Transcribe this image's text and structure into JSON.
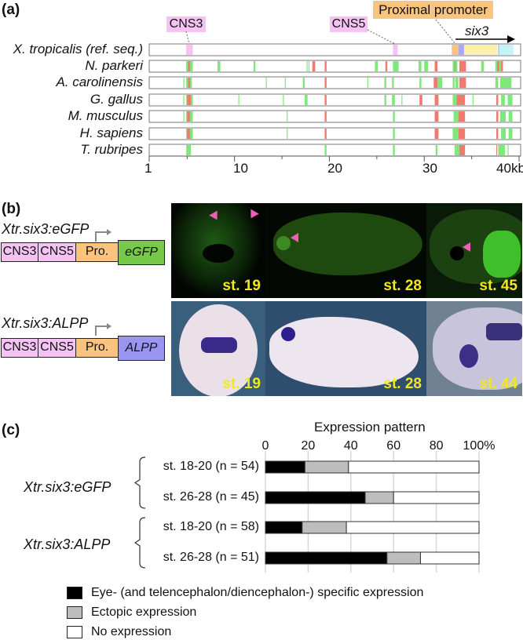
{
  "panel_a": {
    "label": "(a)",
    "annotations": {
      "cns3": "CNS3",
      "cns5": "CNS5",
      "promoter": "Proximal promoter",
      "gene": "six3"
    },
    "axis_ticks": [
      "1",
      "10",
      "20",
      "30",
      "40"
    ],
    "axis_unit": "kb",
    "colors": {
      "conserved": "#7fe87a",
      "highly_conserved": "#f07a6e",
      "cns": "#f5c3f3",
      "promoter": "#f8c47f",
      "exon": "#a9a9f5",
      "utr": "#fbf0a8",
      "cds": "#c5f3f8"
    },
    "reference": {
      "name": "X. tropicalis (ref. seq.)",
      "regions": [
        [
          4.9,
          5.6,
          "cns"
        ],
        [
          26.7,
          27.2,
          "cns"
        ],
        [
          32.9,
          33.6,
          "promoter"
        ],
        [
          33.6,
          34.2,
          "exon"
        ],
        [
          34.2,
          37.7,
          "utr"
        ],
        [
          37.8,
          37.9,
          "exon"
        ],
        [
          37.9,
          39.4,
          "cds"
        ]
      ]
    },
    "species": [
      {
        "name": "N. parkeri",
        "blocks": [
          [
            4.9,
            5.6,
            "g"
          ],
          [
            5.1,
            5.3,
            "r"
          ],
          [
            8.2,
            8.5,
            "g"
          ],
          [
            12.0,
            12.2,
            "g"
          ],
          [
            17.6,
            17.7,
            "g"
          ],
          [
            17.8,
            17.9,
            "g"
          ],
          [
            18.2,
            18.5,
            "r"
          ],
          [
            19.5,
            19.7,
            "r"
          ],
          [
            24.8,
            25.1,
            "g"
          ],
          [
            25.9,
            26.1,
            "r"
          ],
          [
            26.7,
            27.3,
            "g"
          ],
          [
            29.4,
            29.7,
            "g"
          ],
          [
            30.0,
            30.4,
            "g"
          ],
          [
            31.1,
            31.4,
            "r"
          ],
          [
            33.0,
            33.5,
            "g"
          ],
          [
            33.2,
            33.3,
            "r"
          ],
          [
            33.7,
            34.4,
            "r"
          ],
          [
            36.0,
            36.3,
            "g"
          ],
          [
            37.5,
            38.2,
            "g"
          ],
          [
            37.7,
            37.9,
            "r"
          ],
          [
            38.1,
            38.3,
            "r"
          ]
        ]
      },
      {
        "name": "A. carolinensis",
        "blocks": [
          [
            4.6,
            4.7,
            "g"
          ],
          [
            4.9,
            5.5,
            "g"
          ],
          [
            5.1,
            5.3,
            "r"
          ],
          [
            13.3,
            13.4,
            "g"
          ],
          [
            15.3,
            15.4,
            "g"
          ],
          [
            17.2,
            17.4,
            "g"
          ],
          [
            19.5,
            19.7,
            "r"
          ],
          [
            24.0,
            24.1,
            "g"
          ],
          [
            25.8,
            26.0,
            "g"
          ],
          [
            26.6,
            26.8,
            "g"
          ],
          [
            29.5,
            29.7,
            "g"
          ],
          [
            31.0,
            31.4,
            "r"
          ],
          [
            31.4,
            31.9,
            "g"
          ],
          [
            33.0,
            33.2,
            "g"
          ],
          [
            33.3,
            33.6,
            "g"
          ],
          [
            33.7,
            34.4,
            "r"
          ],
          [
            37.5,
            37.8,
            "g"
          ],
          [
            38.0,
            39.2,
            "g"
          ]
        ]
      },
      {
        "name": "G. gallus",
        "blocks": [
          [
            4.6,
            4.7,
            "g"
          ],
          [
            4.9,
            5.6,
            "g"
          ],
          [
            5.0,
            5.4,
            "r"
          ],
          [
            10.4,
            10.5,
            "g"
          ],
          [
            15.1,
            15.2,
            "g"
          ],
          [
            17.4,
            17.7,
            "g"
          ],
          [
            19.5,
            19.7,
            "r"
          ],
          [
            25.8,
            26.0,
            "g"
          ],
          [
            26.6,
            26.9,
            "g"
          ],
          [
            27.6,
            27.7,
            "g"
          ],
          [
            29.5,
            29.8,
            "r"
          ],
          [
            31.1,
            31.5,
            "r"
          ],
          [
            33.0,
            33.4,
            "g"
          ],
          [
            33.4,
            34.3,
            "r"
          ],
          [
            35.1,
            35.2,
            "g"
          ],
          [
            37.6,
            37.8,
            "r"
          ],
          [
            38.1,
            38.5,
            "g"
          ],
          [
            38.8,
            39.3,
            "g"
          ]
        ]
      },
      {
        "name": "M. musculus",
        "blocks": [
          [
            4.6,
            4.7,
            "g"
          ],
          [
            4.9,
            5.6,
            "g"
          ],
          [
            5.0,
            5.3,
            "r"
          ],
          [
            15.5,
            15.6,
            "g"
          ],
          [
            19.5,
            19.7,
            "r"
          ],
          [
            26.7,
            26.9,
            "g"
          ],
          [
            31.1,
            31.5,
            "r"
          ],
          [
            33.1,
            33.6,
            "g"
          ],
          [
            33.6,
            34.3,
            "r"
          ],
          [
            37.6,
            37.8,
            "r"
          ],
          [
            38.0,
            38.6,
            "g"
          ],
          [
            38.9,
            39.3,
            "g"
          ]
        ]
      },
      {
        "name": "H. sapiens",
        "blocks": [
          [
            4.9,
            5.6,
            "g"
          ],
          [
            5.0,
            5.3,
            "r"
          ],
          [
            15.5,
            15.6,
            "g"
          ],
          [
            19.5,
            19.7,
            "r"
          ],
          [
            26.7,
            26.9,
            "g"
          ],
          [
            31.1,
            31.5,
            "r"
          ],
          [
            33.0,
            33.6,
            "g"
          ],
          [
            33.6,
            34.3,
            "r"
          ],
          [
            37.6,
            37.8,
            "r"
          ],
          [
            38.1,
            38.6,
            "g"
          ],
          [
            38.9,
            39.3,
            "g"
          ]
        ]
      },
      {
        "name": "T. rubripes",
        "blocks": [
          [
            4.9,
            5.4,
            "g"
          ],
          [
            19.5,
            19.7,
            "g"
          ],
          [
            26.7,
            26.9,
            "g"
          ],
          [
            31.2,
            31.4,
            "g"
          ],
          [
            33.2,
            33.7,
            "g"
          ],
          [
            33.7,
            34.3,
            "r"
          ],
          [
            37.6,
            37.7,
            "r"
          ],
          [
            37.8,
            38.5,
            "g"
          ],
          [
            38.8,
            38.9,
            "g"
          ]
        ]
      }
    ]
  },
  "panel_b": {
    "label": "(b)",
    "constructs": [
      {
        "name": "Xtr.six3:eGFP",
        "elements": [
          "CNS3",
          "CNS5",
          "Pro.",
          "eGFP"
        ],
        "reporter_color": "#77c94a"
      },
      {
        "name": "Xtr.six3:ALPP",
        "elements": [
          "CNS3",
          "CNS5",
          "Pro.",
          "ALPP"
        ],
        "reporter_color": "#9a95f0"
      }
    ],
    "photos_top": [
      {
        "stage": "st. 19"
      },
      {
        "stage": "st. 28"
      },
      {
        "stage": "st. 45"
      }
    ],
    "photos_bottom": [
      {
        "stage": "st. 19"
      },
      {
        "stage": "st. 28"
      },
      {
        "stage": "st. 44"
      }
    ]
  },
  "panel_c": {
    "label": "(c)"
  },
  "chart_data": {
    "type": "bar",
    "stacked": true,
    "orientation": "horizontal",
    "title": "Expression pattern",
    "groups": [
      {
        "name": "Xtr.six3:eGFP",
        "rows": [
          "st. 18-20 (n = 54)",
          "st. 26-28 (n = 45)"
        ]
      },
      {
        "name": "Xtr.six3:ALPP",
        "rows": [
          "st. 18-20 (n = 58)",
          "st. 26-28 (n = 51)"
        ]
      }
    ],
    "categories": [
      "st. 18-20 (n = 54)",
      "st. 26-28 (n = 45)",
      "st. 18-20 (n = 58)",
      "st. 26-28 (n = 51)"
    ],
    "series": [
      {
        "name": "Eye- (and telencephalon/diencephalon-) specific expression",
        "color": "#000000",
        "values": [
          18.5,
          46.7,
          17.2,
          56.9
        ]
      },
      {
        "name": "Ectopic expression",
        "color": "#bdbdbd",
        "values": [
          20.4,
          13.3,
          20.7,
          15.7
        ]
      },
      {
        "name": "No expression",
        "color": "#ffffff",
        "values": [
          61.1,
          40.0,
          62.1,
          27.4
        ]
      }
    ],
    "xlim": [
      0,
      100
    ],
    "xticks": [
      "0",
      "20",
      "40",
      "60",
      "80",
      "100%"
    ],
    "grid": true,
    "legend": "bottom"
  }
}
